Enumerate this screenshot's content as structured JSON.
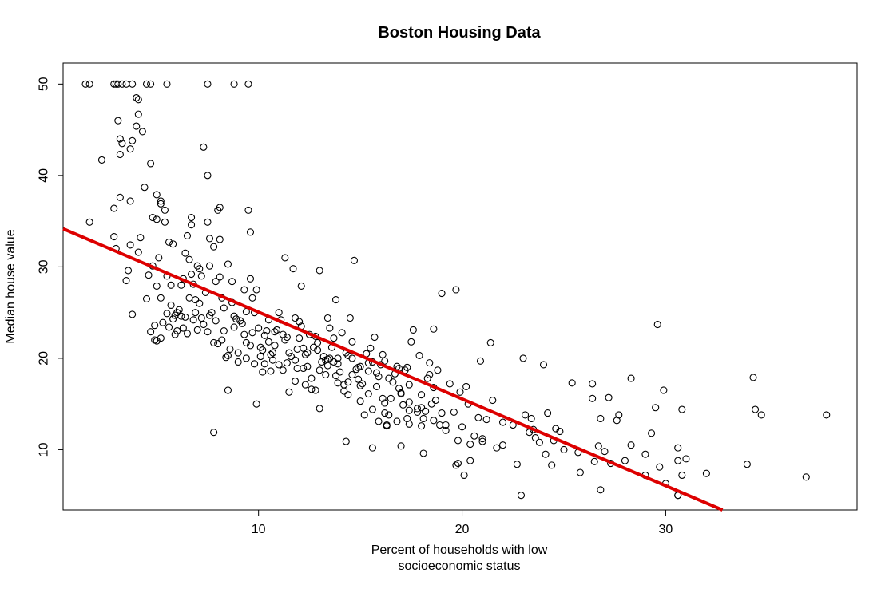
{
  "chart_data": {
    "type": "scatter",
    "title": "Boston Housing Data",
    "xlabel_lines": [
      "Percent of households with low",
      "socioeconomic status"
    ],
    "ylabel": "Median house value",
    "xlim": [
      0.4,
      39.4
    ],
    "ylim": [
      3.4,
      52.3
    ],
    "xticks": [
      10,
      20,
      30
    ],
    "yticks": [
      10,
      20,
      30,
      40,
      50
    ],
    "grid": false,
    "legend": "none",
    "point_color": "#000000",
    "fit_line": {
      "intercept": 34.55,
      "slope": -0.95,
      "color": "#dd0000"
    },
    "points": [
      [
        1.5,
        50
      ],
      [
        1.7,
        50
      ],
      [
        2.9,
        50
      ],
      [
        3.0,
        50
      ],
      [
        3.1,
        50
      ],
      [
        3.3,
        50
      ],
      [
        3.5,
        50
      ],
      [
        3.8,
        50
      ],
      [
        4.5,
        50
      ],
      [
        4.7,
        50
      ],
      [
        5.5,
        50
      ],
      [
        7.5,
        50
      ],
      [
        8.8,
        50
      ],
      [
        9.5,
        50
      ],
      [
        1.7,
        34.9
      ],
      [
        2.3,
        41.7
      ],
      [
        2.9,
        36.4
      ],
      [
        2.9,
        33.3
      ],
      [
        3.0,
        32.0
      ],
      [
        3.1,
        46.0
      ],
      [
        3.2,
        44.0
      ],
      [
        3.2,
        42.3
      ],
      [
        3.3,
        43.5
      ],
      [
        3.2,
        37.6
      ],
      [
        3.5,
        28.5
      ],
      [
        3.6,
        29.6
      ],
      [
        3.7,
        32.4
      ],
      [
        3.7,
        37.2
      ],
      [
        3.8,
        43.8
      ],
      [
        3.7,
        42.9
      ],
      [
        3.8,
        24.8
      ],
      [
        4.0,
        45.4
      ],
      [
        4.0,
        48.5
      ],
      [
        4.1,
        48.3
      ],
      [
        4.1,
        46.7
      ],
      [
        4.3,
        44.8
      ],
      [
        4.2,
        33.2
      ],
      [
        4.4,
        38.7
      ],
      [
        4.1,
        31.6
      ],
      [
        4.6,
        29.1
      ],
      [
        4.7,
        41.3
      ],
      [
        4.8,
        35.4
      ],
      [
        4.8,
        30.1
      ],
      [
        5.0,
        37.9
      ],
      [
        5.0,
        35.2
      ],
      [
        5.1,
        31.0
      ],
      [
        5.2,
        37.2
      ],
      [
        5.2,
        36.9
      ],
      [
        5.4,
        36.2
      ],
      [
        5.4,
        34.9
      ],
      [
        5.6,
        32.7
      ],
      [
        5.8,
        32.5
      ],
      [
        5.9,
        22.6
      ],
      [
        5.6,
        23.4
      ],
      [
        5.2,
        22.2
      ],
      [
        5.0,
        21.9
      ],
      [
        4.7,
        22.9
      ],
      [
        4.9,
        23.6
      ],
      [
        5.5,
        24.9
      ],
      [
        5.9,
        24.7
      ],
      [
        6.0,
        25.0
      ],
      [
        6.2,
        24.6
      ],
      [
        6.3,
        28.7
      ],
      [
        6.4,
        31.5
      ],
      [
        6.6,
        26.6
      ],
      [
        6.7,
        35.4
      ],
      [
        6.7,
        34.6
      ],
      [
        6.5,
        33.4
      ],
      [
        6.8,
        28.1
      ],
      [
        6.9,
        26.4
      ],
      [
        7.0,
        30.1
      ],
      [
        7.1,
        29.8
      ],
      [
        7.2,
        29.0
      ],
      [
        7.3,
        43.1
      ],
      [
        7.5,
        40.0
      ],
      [
        7.5,
        34.9
      ],
      [
        7.6,
        33.1
      ],
      [
        7.6,
        30.1
      ],
      [
        7.8,
        32.2
      ],
      [
        7.9,
        28.4
      ],
      [
        8.0,
        36.2
      ],
      [
        8.1,
        36.5
      ],
      [
        8.1,
        33.0
      ],
      [
        8.2,
        26.6
      ],
      [
        8.3,
        23.0
      ],
      [
        8.5,
        30.3
      ],
      [
        8.5,
        20.3
      ],
      [
        8.7,
        28.4
      ],
      [
        8.8,
        23.4
      ],
      [
        8.9,
        24.3
      ],
      [
        9.1,
        24.1
      ],
      [
        9.3,
        27.5
      ],
      [
        9.3,
        22.6
      ],
      [
        9.4,
        21.7
      ],
      [
        9.5,
        36.2
      ],
      [
        9.6,
        33.8
      ],
      [
        9.6,
        28.7
      ],
      [
        9.7,
        26.6
      ],
      [
        9.8,
        25.0
      ],
      [
        9.9,
        27.5
      ],
      [
        10.0,
        23.3
      ],
      [
        10.1,
        21.2
      ],
      [
        10.2,
        20.9
      ],
      [
        10.3,
        19.4
      ],
      [
        10.4,
        23.0
      ],
      [
        10.5,
        21.8
      ],
      [
        10.6,
        18.6
      ],
      [
        10.7,
        20.6
      ],
      [
        10.8,
        22.9
      ],
      [
        10.9,
        23.1
      ],
      [
        11.1,
        24.2
      ],
      [
        11.2,
        22.6
      ],
      [
        11.3,
        31.0
      ],
      [
        11.4,
        22.3
      ],
      [
        11.5,
        20.6
      ],
      [
        11.6,
        20.2
      ],
      [
        11.7,
        29.8
      ],
      [
        11.8,
        24.4
      ],
      [
        11.9,
        18.9
      ],
      [
        12.0,
        22.2
      ],
      [
        12.1,
        27.9
      ],
      [
        12.2,
        21.1
      ],
      [
        12.3,
        20.4
      ],
      [
        12.4,
        19.1
      ],
      [
        12.5,
        22.6
      ],
      [
        12.6,
        16.6
      ],
      [
        12.7,
        21.2
      ],
      [
        12.8,
        22.4
      ],
      [
        12.9,
        21.7
      ],
      [
        13.0,
        29.6
      ],
      [
        13.1,
        19.6
      ],
      [
        13.2,
        20.2
      ],
      [
        13.3,
        19.8
      ],
      [
        13.4,
        24.4
      ],
      [
        13.5,
        20.0
      ],
      [
        13.6,
        21.2
      ],
      [
        13.7,
        19.6
      ],
      [
        13.8,
        26.4
      ],
      [
        13.9,
        20.0
      ],
      [
        14.0,
        18.5
      ],
      [
        14.1,
        22.8
      ],
      [
        14.2,
        16.4
      ],
      [
        14.3,
        20.6
      ],
      [
        14.4,
        17.4
      ],
      [
        14.5,
        24.4
      ],
      [
        14.6,
        20.0
      ],
      [
        14.7,
        30.7
      ],
      [
        14.8,
        18.8
      ],
      [
        14.9,
        17.7
      ],
      [
        15.0,
        19.1
      ],
      [
        15.1,
        17.2
      ],
      [
        15.2,
        13.8
      ],
      [
        15.4,
        19.5
      ],
      [
        15.5,
        21.1
      ],
      [
        15.6,
        19.6
      ],
      [
        15.7,
        22.3
      ],
      [
        15.8,
        18.4
      ],
      [
        15.9,
        13.1
      ],
      [
        16.0,
        19.3
      ],
      [
        16.1,
        15.6
      ],
      [
        16.2,
        19.7
      ],
      [
        16.3,
        12.7
      ],
      [
        16.4,
        13.8
      ],
      [
        16.5,
        15.6
      ],
      [
        16.7,
        18.3
      ],
      [
        16.9,
        18.9
      ],
      [
        17.0,
        16.1
      ],
      [
        17.1,
        14.9
      ],
      [
        17.2,
        18.7
      ],
      [
        17.3,
        13.4
      ],
      [
        17.4,
        14.3
      ],
      [
        17.5,
        21.8
      ],
      [
        17.6,
        23.1
      ],
      [
        17.8,
        14.1
      ],
      [
        17.9,
        20.3
      ],
      [
        18.0,
        14.6
      ],
      [
        18.1,
        13.4
      ],
      [
        18.3,
        17.8
      ],
      [
        18.4,
        19.5
      ],
      [
        18.6,
        23.2
      ],
      [
        18.7,
        15.4
      ],
      [
        18.9,
        12.7
      ],
      [
        19.0,
        27.1
      ],
      [
        19.2,
        12.7
      ],
      [
        19.4,
        17.2
      ],
      [
        19.6,
        14.1
      ],
      [
        19.7,
        27.5
      ],
      [
        19.8,
        8.5
      ],
      [
        19.9,
        16.3
      ],
      [
        20.0,
        12.5
      ],
      [
        20.1,
        7.2
      ],
      [
        20.3,
        15.0
      ],
      [
        20.4,
        8.8
      ],
      [
        20.6,
        11.5
      ],
      [
        20.8,
        13.5
      ],
      [
        20.9,
        19.7
      ],
      [
        21.0,
        10.9
      ],
      [
        21.2,
        13.3
      ],
      [
        21.4,
        21.7
      ],
      [
        21.5,
        15.4
      ],
      [
        21.7,
        10.2
      ],
      [
        22.0,
        10.5
      ],
      [
        22.5,
        12.7
      ],
      [
        22.7,
        8.4
      ],
      [
        22.9,
        5.0
      ],
      [
        23.0,
        20.0
      ],
      [
        23.1,
        13.8
      ],
      [
        23.3,
        11.9
      ],
      [
        23.4,
        13.4
      ],
      [
        23.6,
        11.3
      ],
      [
        23.8,
        10.8
      ],
      [
        24.0,
        19.3
      ],
      [
        24.1,
        9.5
      ],
      [
        24.2,
        14.0
      ],
      [
        24.4,
        8.3
      ],
      [
        24.6,
        12.3
      ],
      [
        24.8,
        12.0
      ],
      [
        25.4,
        17.3
      ],
      [
        25.7,
        9.7
      ],
      [
        25.8,
        7.5
      ],
      [
        26.4,
        17.2
      ],
      [
        26.4,
        15.6
      ],
      [
        26.5,
        8.7
      ],
      [
        26.7,
        10.4
      ],
      [
        26.8,
        5.6
      ],
      [
        26.8,
        13.4
      ],
      [
        27.2,
        15.7
      ],
      [
        27.3,
        8.5
      ],
      [
        27.6,
        13.2
      ],
      [
        27.7,
        13.8
      ],
      [
        28.3,
        17.8
      ],
      [
        28.3,
        10.5
      ],
      [
        29.0,
        7.2
      ],
      [
        29.3,
        11.8
      ],
      [
        29.5,
        14.6
      ],
      [
        29.6,
        23.7
      ],
      [
        29.7,
        8.1
      ],
      [
        29.9,
        16.5
      ],
      [
        30.0,
        6.3
      ],
      [
        30.6,
        5.0
      ],
      [
        30.6,
        10.2
      ],
      [
        30.6,
        8.8
      ],
      [
        30.8,
        7.2
      ],
      [
        30.8,
        14.4
      ],
      [
        32.0,
        7.4
      ],
      [
        34.0,
        8.4
      ],
      [
        34.3,
        17.9
      ],
      [
        34.4,
        14.4
      ],
      [
        34.7,
        13.8
      ],
      [
        36.9,
        7.0
      ],
      [
        37.9,
        13.8
      ],
      [
        30.6,
        5.0
      ],
      [
        5.0,
        27.9
      ],
      [
        5.2,
        26.6
      ],
      [
        5.5,
        29.0
      ],
      [
        5.7,
        28.0
      ],
      [
        6.1,
        25.3
      ],
      [
        6.4,
        24.5
      ],
      [
        6.9,
        25.0
      ],
      [
        7.2,
        24.4
      ],
      [
        7.6,
        24.7
      ],
      [
        7.9,
        24.1
      ],
      [
        8.2,
        22.0
      ],
      [
        8.6,
        21.0
      ],
      [
        9.0,
        20.6
      ],
      [
        9.4,
        20.0
      ],
      [
        9.8,
        19.4
      ],
      [
        10.2,
        18.5
      ],
      [
        10.6,
        20.4
      ],
      [
        11.0,
        19.3
      ],
      [
        11.4,
        19.5
      ],
      [
        11.8,
        19.8
      ],
      [
        12.2,
        18.9
      ],
      [
        12.6,
        17.8
      ],
      [
        13.0,
        18.7
      ],
      [
        13.4,
        19.2
      ],
      [
        13.8,
        18.1
      ],
      [
        14.2,
        17.1
      ],
      [
        14.6,
        18.2
      ],
      [
        15.0,
        17.0
      ],
      [
        15.4,
        16.1
      ],
      [
        15.8,
        16.9
      ],
      [
        16.2,
        15.1
      ],
      [
        16.6,
        17.4
      ],
      [
        17.0,
        16.2
      ],
      [
        17.4,
        15.2
      ],
      [
        17.8,
        14.5
      ],
      [
        18.2,
        14.2
      ],
      [
        18.6,
        16.8
      ],
      [
        19.0,
        14.0
      ],
      [
        6.0,
        23.0
      ],
      [
        6.5,
        22.7
      ],
      [
        7.0,
        23.1
      ],
      [
        7.5,
        22.9
      ],
      [
        8.0,
        21.6
      ],
      [
        6.2,
        28.0
      ],
      [
        6.6,
        30.8
      ],
      [
        7.1,
        26.0
      ],
      [
        7.7,
        25.0
      ],
      [
        8.3,
        25.5
      ],
      [
        8.8,
        24.6
      ],
      [
        9.2,
        23.8
      ],
      [
        9.7,
        22.8
      ],
      [
        10.3,
        22.5
      ],
      [
        10.8,
        21.4
      ],
      [
        11.3,
        22.0
      ],
      [
        11.9,
        21.0
      ],
      [
        12.4,
        20.6
      ],
      [
        12.9,
        20.9
      ],
      [
        13.4,
        19.9
      ],
      [
        13.9,
        19.4
      ],
      [
        14.4,
        20.3
      ],
      [
        14.9,
        19.0
      ],
      [
        15.4,
        18.6
      ],
      [
        15.9,
        18.0
      ],
      [
        16.4,
        17.8
      ],
      [
        16.9,
        16.7
      ],
      [
        17.4,
        17.1
      ],
      [
        18.0,
        16.0
      ],
      [
        18.5,
        15.0
      ],
      [
        4.9,
        22.0
      ],
      [
        5.3,
        23.9
      ],
      [
        5.8,
        24.3
      ],
      [
        6.3,
        23.3
      ],
      [
        6.8,
        24.2
      ],
      [
        7.3,
        23.7
      ],
      [
        7.8,
        21.7
      ],
      [
        8.4,
        20.1
      ],
      [
        9.0,
        19.6
      ],
      [
        9.6,
        21.4
      ],
      [
        10.1,
        20.2
      ],
      [
        10.7,
        19.8
      ],
      [
        11.2,
        18.7
      ],
      [
        11.8,
        17.5
      ],
      [
        12.3,
        17.1
      ],
      [
        12.8,
        16.5
      ],
      [
        13.3,
        18.2
      ],
      [
        13.9,
        17.3
      ],
      [
        14.4,
        16.0
      ],
      [
        15.0,
        15.3
      ],
      [
        15.6,
        14.4
      ],
      [
        16.2,
        14.0
      ],
      [
        16.8,
        13.1
      ],
      [
        17.4,
        12.8
      ],
      [
        18.0,
        12.6
      ],
      [
        18.6,
        13.2
      ],
      [
        19.2,
        12.1
      ],
      [
        19.8,
        11.0
      ],
      [
        20.4,
        10.6
      ],
      [
        21.0,
        11.2
      ],
      [
        22.0,
        13.0
      ],
      [
        23.5,
        12.2
      ],
      [
        24.5,
        11.0
      ],
      [
        25.0,
        10.0
      ],
      [
        27.0,
        9.8
      ],
      [
        28.0,
        8.8
      ],
      [
        29.0,
        9.5
      ],
      [
        31.0,
        9.0
      ],
      [
        4.5,
        26.5
      ],
      [
        5.7,
        25.8
      ],
      [
        7.4,
        27.2
      ],
      [
        8.7,
        26.1
      ],
      [
        10.5,
        24.2
      ],
      [
        12.1,
        23.5
      ],
      [
        13.7,
        22.2
      ],
      [
        15.3,
        20.5
      ],
      [
        16.8,
        19.1
      ],
      [
        18.4,
        18.2
      ],
      [
        20.2,
        16.9
      ],
      [
        9.9,
        15.0
      ],
      [
        7.8,
        11.9
      ],
      [
        8.5,
        16.5
      ],
      [
        11.5,
        16.3
      ],
      [
        14.3,
        10.9
      ],
      [
        15.6,
        10.2
      ],
      [
        17.0,
        10.4
      ],
      [
        18.1,
        9.6
      ],
      [
        19.7,
        8.3
      ],
      [
        13.0,
        14.5
      ],
      [
        16.3,
        12.6
      ],
      [
        11.0,
        25.0
      ],
      [
        12.0,
        24.0
      ],
      [
        13.5,
        23.3
      ],
      [
        14.6,
        21.8
      ],
      [
        16.1,
        20.4
      ],
      [
        17.3,
        19.0
      ],
      [
        18.8,
        18.7
      ],
      [
        9.4,
        25.1
      ],
      [
        8.1,
        28.9
      ],
      [
        6.7,
        29.2
      ]
    ]
  }
}
